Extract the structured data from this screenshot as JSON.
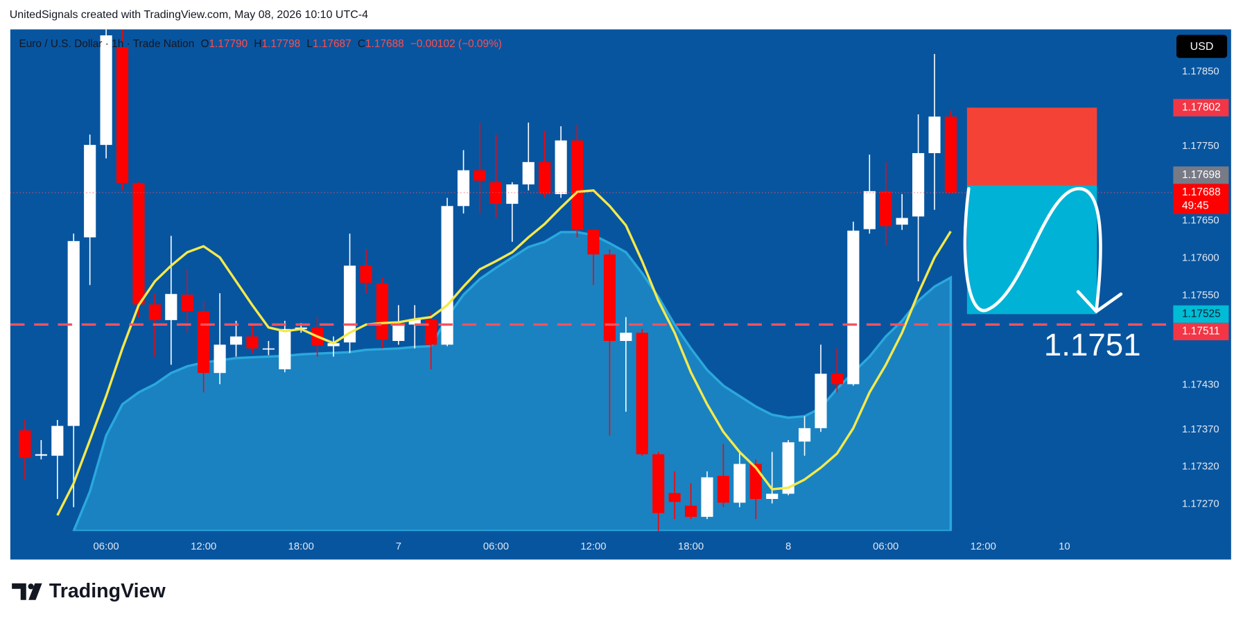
{
  "watermark": "UnitedSignals created with TradingView.com, May 08, 2026 10:10 UTC-4",
  "brand": "TradingView",
  "chart_data": {
    "type": "candlestick",
    "title": "Euro / U.S. Dollar · 1h · Trade Nation",
    "ohlc_legend": [
      {
        "label": "O",
        "value": "1.17790"
      },
      {
        "label": "H",
        "value": "1.17798"
      },
      {
        "label": "L",
        "value": "1.17687"
      },
      {
        "label": "C",
        "value": "1.17688"
      }
    ],
    "change": "−0.00102 (−0.09%)",
    "currency": "USD",
    "x": [
      1,
      2,
      3,
      4,
      5,
      6,
      7,
      8,
      9,
      10,
      11,
      12,
      13,
      14,
      15,
      16,
      17,
      18,
      19,
      20,
      21,
      22,
      23,
      24,
      25,
      26,
      27,
      28,
      29,
      30,
      31,
      32,
      33,
      34,
      35,
      36,
      37,
      38,
      39,
      40,
      41,
      42,
      43,
      44,
      45,
      46,
      47,
      48,
      49,
      50,
      51,
      52,
      53,
      54,
      55,
      56,
      57,
      58
    ],
    "open": [
      1.17369,
      1.17335,
      1.17335,
      1.17375,
      1.17628,
      1.17752,
      1.17883,
      1.17701,
      1.17538,
      1.17517,
      1.17551,
      1.17529,
      1.17446,
      1.17484,
      1.17495,
      1.17478,
      1.17451,
      1.17505,
      1.17507,
      1.17482,
      1.17487,
      1.1759,
      1.17566,
      1.17489,
      1.17511,
      1.17518,
      1.17484,
      1.1767,
      1.17718,
      1.17702,
      1.17673,
      1.17699,
      1.17729,
      1.17686,
      1.17758,
      1.17638,
      1.17605,
      1.17489,
      1.175,
      1.17337,
      1.17285,
      1.17268,
      1.17253,
      1.17308,
      1.17272,
      1.17324,
      1.17277,
      1.17284,
      1.17354,
      1.17372,
      1.17445,
      1.17431,
      1.17639,
      1.1769,
      1.17645,
      1.17656,
      1.17741,
      1.1779
    ],
    "high": [
      1.17383,
      1.17356,
      1.17383,
      1.17633,
      1.17766,
      1.17907,
      1.17907,
      1.17702,
      1.17553,
      1.1763,
      1.17585,
      1.17543,
      1.17553,
      1.17516,
      1.17511,
      1.17489,
      1.17516,
      1.17513,
      1.17521,
      1.17495,
      1.17633,
      1.17612,
      1.17574,
      1.17537,
      1.17537,
      1.17527,
      1.17681,
      1.17745,
      1.17782,
      1.17766,
      1.17702,
      1.17782,
      1.17771,
      1.17777,
      1.17779,
      1.17638,
      1.17612,
      1.17521,
      1.17505,
      1.1734,
      1.17314,
      1.17298,
      1.17314,
      1.17351,
      1.1734,
      1.1733,
      1.1734,
      1.17356,
      1.17388,
      1.17484,
      1.17479,
      1.17649,
      1.17739,
      1.17729,
      1.17686,
      1.17793,
      1.17874,
      1.17798
    ],
    "low": [
      1.17303,
      1.1733,
      1.17277,
      1.17266,
      1.17564,
      1.17734,
      1.17691,
      1.17521,
      1.17468,
      1.17457,
      1.175,
      1.1742,
      1.17431,
      1.17468,
      1.17473,
      1.1747,
      1.17447,
      1.175,
      1.17468,
      1.17468,
      1.17473,
      1.17553,
      1.17479,
      1.17484,
      1.17479,
      1.17451,
      1.17482,
      1.1766,
      1.1766,
      1.17654,
      1.17622,
      1.17691,
      1.17681,
      1.17681,
      1.17628,
      1.17564,
      1.17362,
      1.17394,
      1.17335,
      1.17234,
      1.1725,
      1.1725,
      1.1725,
      1.17266,
      1.17266,
      1.1725,
      1.17271,
      1.17282,
      1.17335,
      1.17367,
      1.1742,
      1.17429,
      1.17633,
      1.17617,
      1.17638,
      1.17569,
      1.17665,
      1.17687
    ],
    "close": [
      1.17332,
      1.17337,
      1.17375,
      1.17623,
      1.17752,
      1.17899,
      1.17701,
      1.17538,
      1.17517,
      1.17552,
      1.17529,
      1.17446,
      1.17484,
      1.17495,
      1.17479,
      1.17479,
      1.17505,
      1.17507,
      1.17483,
      1.17486,
      1.1759,
      1.17567,
      1.17491,
      1.17511,
      1.17518,
      1.17484,
      1.1767,
      1.17718,
      1.17704,
      1.17673,
      1.17699,
      1.17729,
      1.17686,
      1.17758,
      1.17638,
      1.17605,
      1.17489,
      1.175,
      1.17337,
      1.17258,
      1.17273,
      1.17253,
      1.17306,
      1.17272,
      1.17324,
      1.17277,
      1.17284,
      1.17353,
      1.17372,
      1.17445,
      1.17431,
      1.17637,
      1.1769,
      1.17643,
      1.17654,
      1.17741,
      1.1779,
      1.17688
    ],
    "up_color": "#ffffff",
    "down_color": "#ff0000",
    "series": [
      {
        "type": "area",
        "color": "#2aa8dc",
        "x": [
          4,
          5,
          6,
          7,
          8,
          9,
          10,
          11,
          12,
          13,
          14,
          15,
          16,
          17,
          18,
          19,
          20,
          21,
          22,
          23,
          24,
          25,
          26,
          27,
          28,
          29,
          30,
          31,
          32,
          33,
          34,
          35,
          36,
          37,
          38,
          39,
          40,
          41,
          42,
          43,
          44,
          45,
          46,
          47,
          48,
          49,
          50,
          51,
          52,
          53,
          54,
          55,
          56,
          57,
          58
        ],
        "values": [
          1.17234,
          1.17287,
          1.17362,
          1.17404,
          1.1742,
          1.17431,
          1.17446,
          1.17455,
          1.1746,
          1.17463,
          1.17466,
          1.17467,
          1.17468,
          1.17469,
          1.17471,
          1.17472,
          1.17473,
          1.17474,
          1.17477,
          1.17478,
          1.17479,
          1.17481,
          1.17482,
          1.17521,
          1.17551,
          1.17572,
          1.17587,
          1.17601,
          1.17615,
          1.17622,
          1.17635,
          1.17635,
          1.17631,
          1.1762,
          1.17608,
          1.1758,
          1.17548,
          1.17511,
          1.17479,
          1.1745,
          1.17429,
          1.17415,
          1.17401,
          1.1739,
          1.17386,
          1.17388,
          1.17399,
          1.17425,
          1.17447,
          1.17468,
          1.17495,
          1.17516,
          1.17543,
          1.17562,
          1.17574
        ]
      },
      {
        "type": "line",
        "color": "#f5e94a",
        "x": [
          3,
          4,
          5,
          6,
          7,
          8,
          9,
          10,
          11,
          12,
          13,
          14,
          15,
          16,
          17,
          18,
          19,
          20,
          21,
          22,
          23,
          24,
          25,
          26,
          27,
          28,
          29,
          30,
          31,
          32,
          33,
          34,
          35,
          36,
          37,
          38,
          39,
          40,
          41,
          42,
          43,
          44,
          45,
          46,
          47,
          48,
          49,
          50,
          51,
          52,
          53,
          54,
          55,
          56,
          57,
          58
        ],
        "values": [
          1.17255,
          1.17298,
          1.17356,
          1.17415,
          1.17479,
          1.17537,
          1.17569,
          1.1759,
          1.17608,
          1.17616,
          1.17601,
          1.17569,
          1.17537,
          1.17507,
          1.17502,
          1.17505,
          1.17495,
          1.17486,
          1.175,
          1.17511,
          1.17513,
          1.17514,
          1.17518,
          1.17521,
          1.17537,
          1.17562,
          1.17585,
          1.17596,
          1.17608,
          1.17628,
          1.17646,
          1.17668,
          1.17689,
          1.17691,
          1.1767,
          1.17644,
          1.17596,
          1.17543,
          1.175,
          1.17447,
          1.17404,
          1.17367,
          1.1734,
          1.17319,
          1.1729,
          1.17292,
          1.17303,
          1.17319,
          1.17338,
          1.17372,
          1.1742,
          1.17457,
          1.175,
          1.17553,
          1.17601,
          1.17636
        ]
      }
    ],
    "xlim": [
      0.1,
      71.6
    ],
    "xticks": [
      {
        "value": 6,
        "label": "06:00"
      },
      {
        "value": 12,
        "label": "12:00"
      },
      {
        "value": 18,
        "label": "18:00"
      },
      {
        "value": 24,
        "label": "7"
      },
      {
        "value": 30,
        "label": "06:00"
      },
      {
        "value": 36,
        "label": "12:00"
      },
      {
        "value": 42,
        "label": "18:00"
      },
      {
        "value": 48,
        "label": "8"
      },
      {
        "value": 54,
        "label": "06:00"
      },
      {
        "value": 60,
        "label": "12:00"
      },
      {
        "value": 65,
        "label": "10"
      }
    ],
    "ylim": [
      1.17234,
      1.17907
    ],
    "yticks": [
      {
        "value": 1.1785,
        "label": "1.17850"
      },
      {
        "value": 1.1775,
        "label": "1.17750"
      },
      {
        "value": 1.1765,
        "label": "1.17650"
      },
      {
        "value": 1.176,
        "label": "1.17600"
      },
      {
        "value": 1.1755,
        "label": "1.17550"
      },
      {
        "value": 1.1743,
        "label": "1.17430"
      },
      {
        "value": 1.1737,
        "label": "1.17370"
      },
      {
        "value": 1.1732,
        "label": "1.17320"
      },
      {
        "value": 1.1727,
        "label": "1.17270"
      }
    ],
    "grid": false,
    "horizontal_lines": [
      {
        "value": 1.17511,
        "color": "#f7525f",
        "style": "dashed"
      },
      {
        "value": 1.17688,
        "color": "#f7525f",
        "style": "dotted"
      }
    ],
    "price_tags": [
      {
        "value": 1.17802,
        "color": "#f23645"
      },
      {
        "value": 1.17698,
        "color": "#787b86"
      },
      {
        "value": 1.17688,
        "countdown": "49:45",
        "color": "#ff0000"
      },
      {
        "value": 1.17525,
        "color": "#00bcd4"
      },
      {
        "value": 1.17511,
        "color": "#f23645"
      }
    ],
    "position": {
      "entry": 1.17698,
      "stop": 1.17802,
      "target": 1.17525,
      "start": 59,
      "end": 67,
      "stop_color": "#f44336",
      "target_color": "#00b2d6"
    },
    "annotation": "1.1751"
  }
}
